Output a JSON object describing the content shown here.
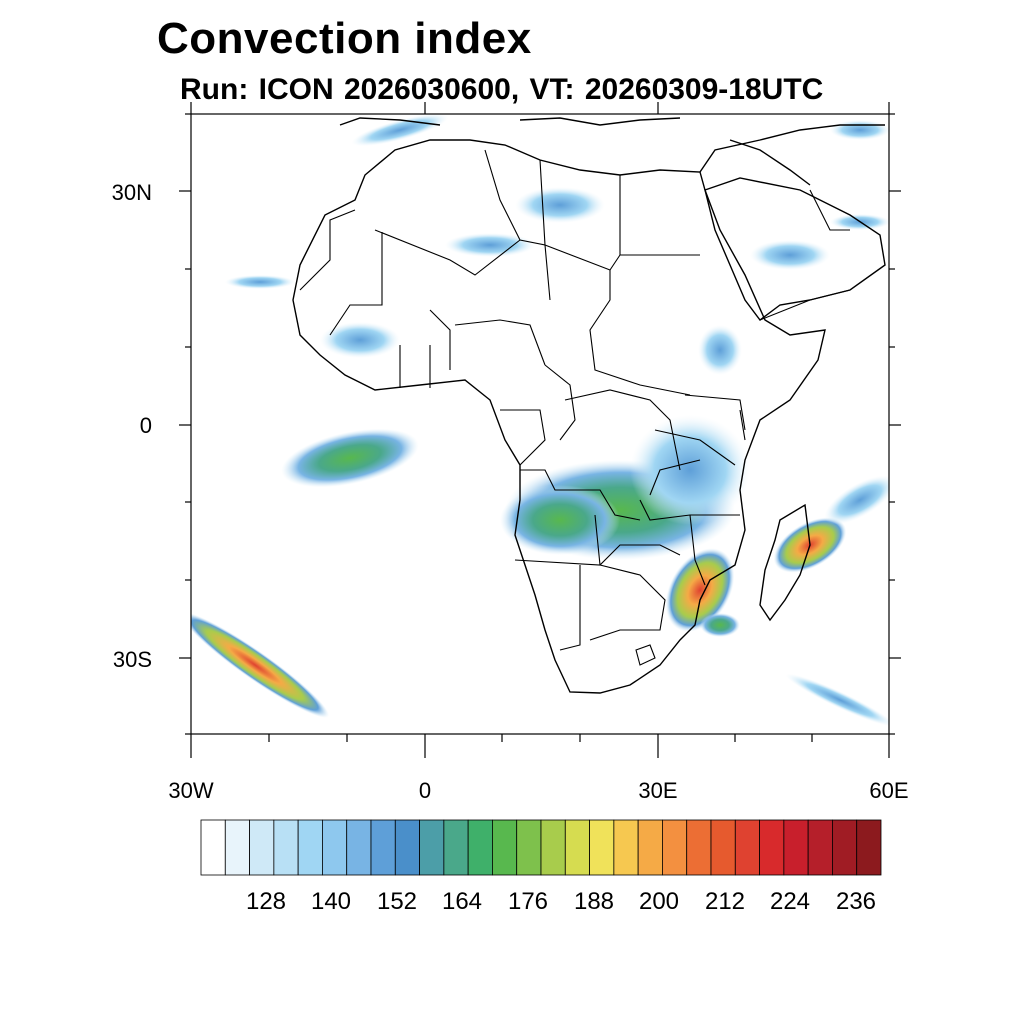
{
  "title": "Convection index",
  "subtitle": "Run: ICON 2026030600,  VT: 20260309-18UTC",
  "axes": {
    "lat_labels": [
      "30N",
      "0",
      "30S"
    ],
    "lon_labels": [
      "30W",
      "0",
      "30E",
      "60E"
    ],
    "lat_range": [
      -40,
      40
    ],
    "lon_range": [
      -30,
      60
    ]
  },
  "colorbar": {
    "labels": [
      "128",
      "140",
      "152",
      "164",
      "176",
      "188",
      "200",
      "212",
      "224",
      "236"
    ],
    "colors": [
      "#ffffff",
      "#e8f4fb",
      "#cfe9f7",
      "#b8e0f5",
      "#a0d6f3",
      "#8ec8ee",
      "#78b4e4",
      "#5e9fd8",
      "#4a8fca",
      "#4c9ea8",
      "#4aa88a",
      "#3fb06a",
      "#58b84e",
      "#7ec14c",
      "#a8cc4c",
      "#d6dc50",
      "#f0e25a",
      "#f6c850",
      "#f5aa46",
      "#f39040",
      "#ec6e34",
      "#e65a2e",
      "#df4230",
      "#d82a2c",
      "#c81f2c",
      "#b51f2a",
      "#a01c24",
      "#8c1a1e"
    ]
  }
}
